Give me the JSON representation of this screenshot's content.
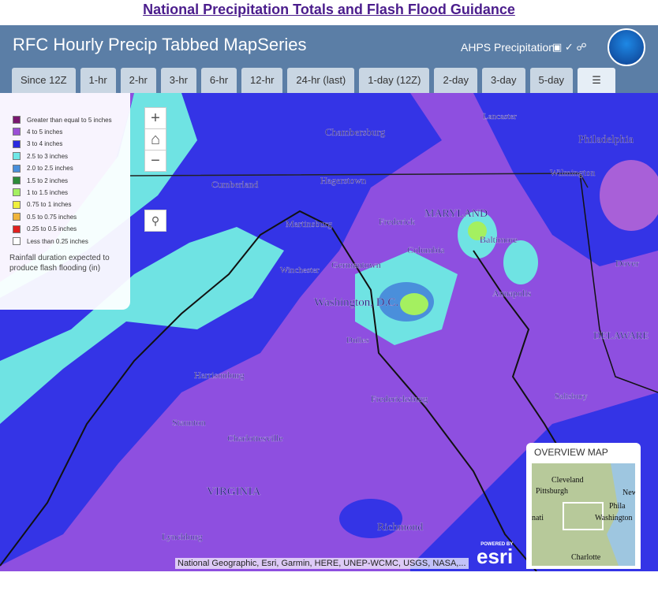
{
  "header": {
    "title": "National Precipitation Totals and Flash Flood Guidance"
  },
  "app_bar": {
    "title": "RFC Hourly Precip Tabbed MapSeries",
    "link": "AHPS Precipitation"
  },
  "tabs": [
    "Since 12Z",
    "1-hr",
    "2-hr",
    "3-hr",
    "6-hr",
    "12-hr",
    "24-hr (last)",
    "1-day (12Z)",
    "2-day",
    "3-day",
    "5-day"
  ],
  "legend": {
    "items": [
      {
        "label": "Greater than equal to 5 inches",
        "color": "#7a1870"
      },
      {
        "label": "4 to 5 inches",
        "color": "#9b4fd6"
      },
      {
        "label": "3 to 4 inches",
        "color": "#2a2ae0"
      },
      {
        "label": "2.5 to 3 inches",
        "color": "#6fe7e7"
      },
      {
        "label": "2.0 to 2.5 inches",
        "color": "#4a8fdb"
      },
      {
        "label": "1.5 to 2 inches",
        "color": "#2e8b3a"
      },
      {
        "label": "1 to 1.5 inches",
        "color": "#a4f060"
      },
      {
        "label": "0.75 to 1 inches",
        "color": "#f0f03c"
      },
      {
        "label": "0.5 to 0.75 inches",
        "color": "#f0b43c"
      },
      {
        "label": "0.25 to 0.5 inches",
        "color": "#e02020"
      },
      {
        "label": "Less than 0.25 inches",
        "color": "#ffffff"
      }
    ],
    "note": "Rainfall duration expected to produce flash flooding (in)"
  },
  "map": {
    "labels": [
      "Chambersburg",
      "Lancaster",
      "Philadelphia",
      "Hagerstown",
      "Cumberland",
      "Wilmington",
      "MARYLAND",
      "Frederick",
      "Martinsburg",
      "Baltimore",
      "Columbia",
      "Germantown",
      "Winchester",
      "Dover",
      "Washington, D.C.",
      "Annapolis",
      "Dulles",
      "DELAWARE",
      "Harrisonburg",
      "Fredericksburg",
      "Salisbury",
      "Staunton",
      "Charlottesville",
      "VIRGINIA",
      "Richmond",
      "Lynchburg"
    ],
    "attribution": "National Geographic, Esri, Garmin, HERE, UNEP-WCMC, USGS, NASA,...",
    "esri": {
      "powered_by": "POWERED BY",
      "logo": "esri"
    }
  },
  "overview": {
    "title": "OVERVIEW MAP",
    "labels": [
      "Cleveland",
      "Pittsburgh",
      "New",
      "Phila",
      "Washington",
      "nati",
      "Charlotte"
    ]
  }
}
